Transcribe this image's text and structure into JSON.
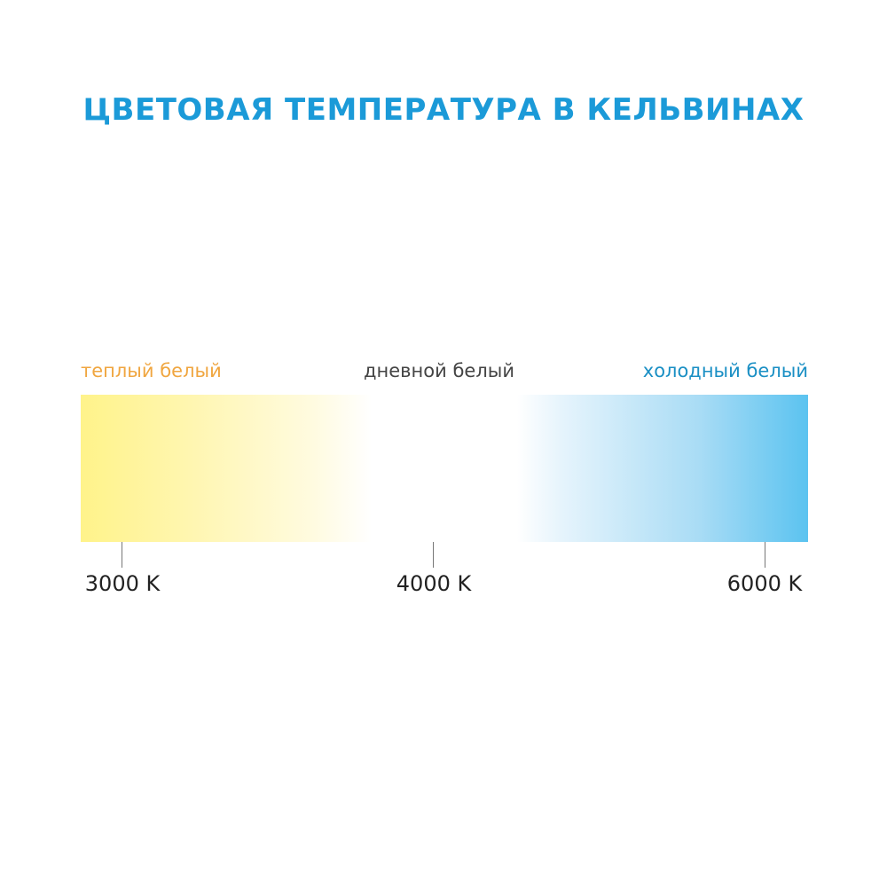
{
  "title": "ЦВЕТОВАЯ ТЕМПЕРАТУРА В КЕЛЬВИНАХ",
  "labels": {
    "warm": "теплый белый",
    "day": "дневной белый",
    "cold": "холодный белый"
  },
  "ticks": [
    "3000 K",
    "4000 K",
    "6000 K"
  ],
  "colors": {
    "title": "#1b9ad8",
    "warm": "#f0a640",
    "day": "#444444",
    "cold": "#1a8fc4",
    "gradient_start": "#fff38a",
    "gradient_end": "#5bc3f0"
  }
}
